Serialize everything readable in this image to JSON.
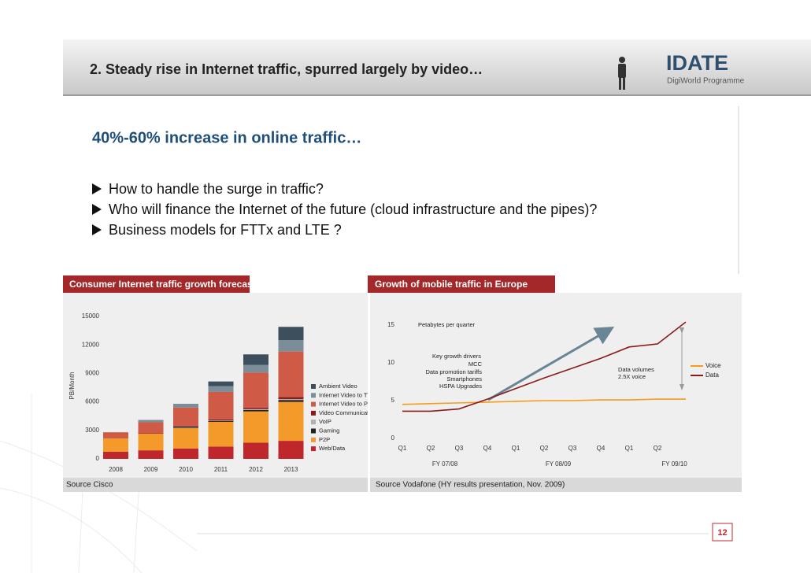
{
  "header": {
    "title": "2. Steady rise in Internet traffic, spurred largely by video…",
    "logo": "IDATE",
    "logo_subtitle": "DigiWorld Programme"
  },
  "subtitle": "40%-60% increase in online traffic…",
  "bullets": [
    "How to handle the surge in traffic?",
    "Who will finance the Internet of the future (cloud infrastructure and the pipes)?",
    "Business models for FTTx and LTE ?"
  ],
  "page_number": 12,
  "chart_data": [
    {
      "type": "bar",
      "stacked": true,
      "title": "Consumer Internet traffic growth forecast",
      "ylabel": "PB/Month",
      "categories": [
        "2008",
        "2009",
        "2010",
        "2011",
        "2012",
        "2013"
      ],
      "ylim": [
        0,
        15000
      ],
      "yticks": [
        0,
        3000,
        6000,
        9000,
        12000,
        15000
      ],
      "series": [
        {
          "name": "Ambient Video",
          "color": "#3d4f5c",
          "values": [
            0,
            0,
            0,
            500,
            1100,
            1400
          ]
        },
        {
          "name": "Internet Video to TV",
          "color": "#7a8d99",
          "values": [
            0,
            250,
            400,
            600,
            800,
            1200
          ]
        },
        {
          "name": "Internet Video to PC",
          "color": "#cf5a45",
          "values": [
            650,
            1150,
            1900,
            2900,
            3700,
            4800
          ]
        },
        {
          "name": "Video Communications",
          "color": "#8b1a1a",
          "values": [
            0,
            50,
            100,
            100,
            150,
            200
          ]
        },
        {
          "name": "VoIP",
          "color": "#b0b0b0",
          "values": [
            0,
            0,
            50,
            50,
            100,
            100
          ]
        },
        {
          "name": "Gaming",
          "color": "#222222",
          "values": [
            0,
            0,
            100,
            100,
            150,
            200
          ]
        },
        {
          "name": "P2P",
          "color": "#f39a2b",
          "values": [
            1400,
            1750,
            2150,
            2600,
            3300,
            4100
          ]
        },
        {
          "name": "Web/Data",
          "color": "#c0272d",
          "values": [
            750,
            900,
            1100,
            1300,
            1700,
            1900
          ]
        }
      ],
      "source": "Source Cisco"
    },
    {
      "type": "line",
      "title": "Growth of mobile traffic in Europe",
      "categories": [
        "Q1",
        "Q2",
        "Q3",
        "Q4",
        "Q1",
        "Q2",
        "Q3",
        "Q4",
        "Q1",
        "Q2",
        null
      ],
      "category_groups": [
        "FY 07/08",
        "FY 08/09",
        "FY 09/10"
      ],
      "ylim": [
        0,
        16
      ],
      "yticks": [
        0,
        5,
        10,
        15
      ],
      "series": [
        {
          "name": "Voice",
          "color": "#f39c1f",
          "values": [
            4.5,
            4.6,
            4.7,
            4.8,
            4.9,
            5.0,
            5.0,
            5.1,
            5.1,
            5.2,
            5.2
          ]
        },
        {
          "name": "Data",
          "color": "#8b1a1a",
          "values": [
            3.6,
            3.6,
            3.9,
            5.2,
            6.6,
            8.0,
            9.3,
            10.6,
            12.1,
            12.5,
            15.4
          ]
        }
      ],
      "annotations": [
        "Petabytes per quarter",
        "Key growth drivers",
        "MCC",
        "Data promotion tariffs",
        "Smartphones",
        "HSPA Upgrades",
        "Data volumes",
        "2.5X voice"
      ],
      "source": "Source Vodafone (HY results presentation, Nov. 2009)"
    }
  ]
}
